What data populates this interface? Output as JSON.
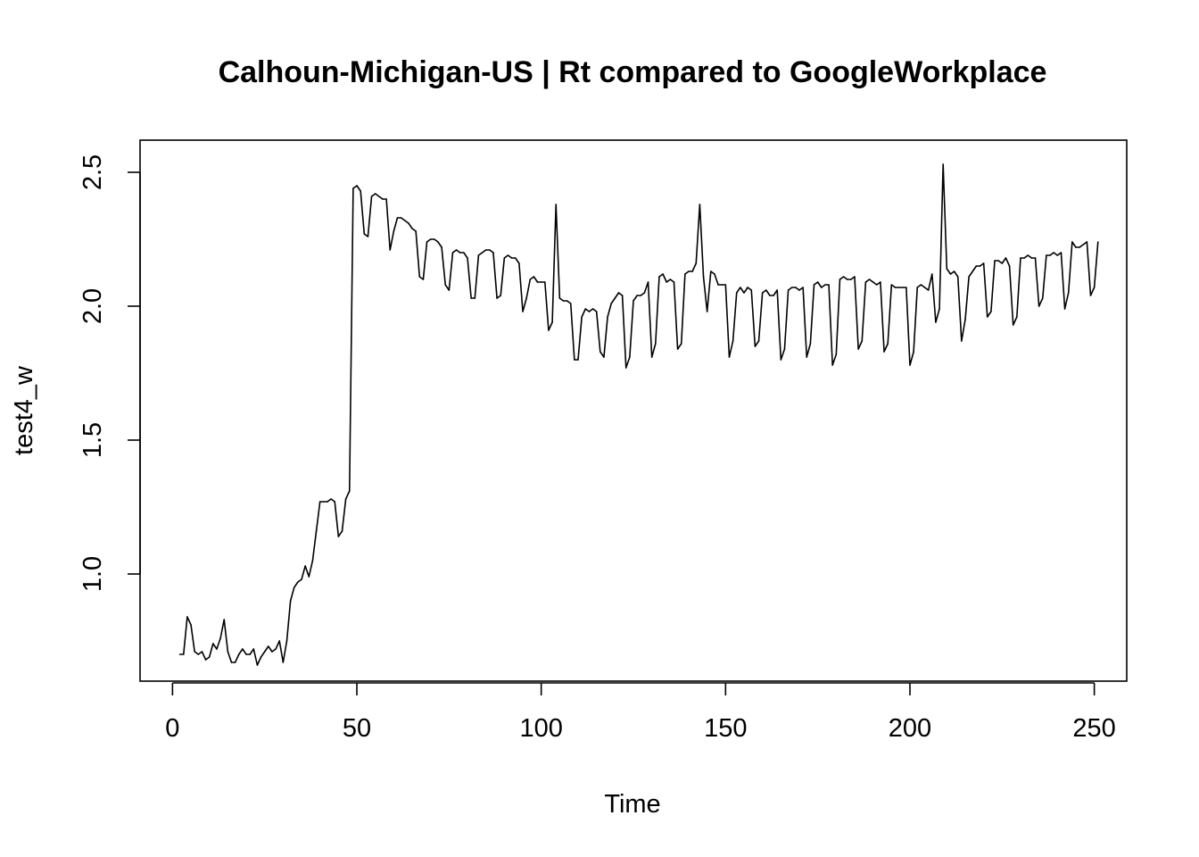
{
  "chart_data": {
    "type": "line",
    "title": "Calhoun-Michigan-US | Rt compared to GoogleWorkplace",
    "xlabel": "Time",
    "ylabel": "test4_w",
    "xlim": [
      -8.8,
      258.8
    ],
    "ylim": [
      0.6,
      2.62
    ],
    "x_ticks": [
      0,
      50,
      100,
      150,
      200,
      250
    ],
    "y_ticks": [
      1.0,
      1.5,
      2.0,
      2.5
    ],
    "x_tick_labels": [
      "0",
      "50",
      "100",
      "150",
      "200",
      "250"
    ],
    "y_tick_labels": [
      "1.0",
      "1.5",
      "2.0",
      "2.5"
    ],
    "grid": false,
    "legend": "none",
    "line_color": "#000000",
    "series": [
      {
        "x_start": 2,
        "values": [
          0.7,
          0.7,
          0.84,
          0.81,
          0.71,
          0.7,
          0.71,
          0.68,
          0.69,
          0.74,
          0.72,
          0.76,
          0.83,
          0.71,
          0.67,
          0.67,
          0.7,
          0.72,
          0.7,
          0.7,
          0.72,
          0.66,
          0.69,
          0.71,
          0.73,
          0.71,
          0.72,
          0.75,
          0.67,
          0.75,
          0.9,
          0.95,
          0.97,
          0.98,
          1.03,
          0.99,
          1.05,
          1.16,
          1.27,
          1.27,
          1.27,
          1.28,
          1.27,
          1.14,
          1.16,
          1.28,
          1.31,
          2.44,
          2.45,
          2.43,
          2.27,
          2.26,
          2.41,
          2.42,
          2.41,
          2.4,
          2.4,
          2.21,
          2.28,
          2.33,
          2.33,
          2.32,
          2.31,
          2.29,
          2.28,
          2.11,
          2.1,
          2.24,
          2.25,
          2.25,
          2.24,
          2.22,
          2.08,
          2.06,
          2.2,
          2.21,
          2.2,
          2.2,
          2.18,
          2.03,
          2.03,
          2.19,
          2.2,
          2.21,
          2.21,
          2.2,
          2.03,
          2.04,
          2.18,
          2.19,
          2.18,
          2.18,
          2.16,
          1.98,
          2.03,
          2.1,
          2.11,
          2.09,
          2.09,
          2.09,
          1.91,
          1.94,
          2.38,
          2.03,
          2.02,
          2.02,
          2.01,
          1.8,
          1.8,
          1.96,
          1.99,
          1.98,
          1.99,
          1.98,
          1.83,
          1.81,
          1.96,
          2.01,
          2.03,
          2.05,
          2.04,
          1.77,
          1.81,
          2.02,
          2.04,
          2.04,
          2.05,
          2.09,
          1.81,
          1.86,
          2.11,
          2.12,
          2.09,
          2.1,
          2.09,
          1.84,
          1.86,
          2.12,
          2.13,
          2.13,
          2.16,
          2.38,
          2.11,
          1.98,
          2.13,
          2.12,
          2.08,
          2.08,
          2.08,
          1.81,
          1.87,
          2.05,
          2.07,
          2.05,
          2.07,
          2.06,
          1.85,
          1.87,
          2.05,
          2.06,
          2.04,
          2.04,
          2.06,
          1.8,
          1.84,
          2.06,
          2.07,
          2.07,
          2.06,
          2.07,
          1.81,
          1.86,
          2.08,
          2.09,
          2.07,
          2.08,
          2.08,
          1.78,
          1.82,
          2.1,
          2.11,
          2.1,
          2.1,
          2.11,
          1.84,
          1.87,
          2.09,
          2.1,
          2.09,
          2.08,
          2.09,
          1.83,
          1.86,
          2.08,
          2.07,
          2.07,
          2.07,
          2.07,
          1.78,
          1.83,
          2.07,
          2.08,
          2.07,
          2.06,
          2.12,
          1.94,
          1.99,
          2.53,
          2.14,
          2.12,
          2.13,
          2.11,
          1.87,
          1.95,
          2.11,
          2.13,
          2.15,
          2.15,
          2.16,
          1.96,
          1.98,
          2.17,
          2.17,
          2.16,
          2.18,
          2.15,
          1.93,
          1.96,
          2.18,
          2.18,
          2.19,
          2.18,
          2.18,
          2.0,
          2.03,
          2.19,
          2.19,
          2.2,
          2.19,
          2.2,
          1.99,
          2.05,
          2.24,
          2.22,
          2.22,
          2.23,
          2.24,
          2.04,
          2.07,
          2.24
        ]
      }
    ]
  }
}
